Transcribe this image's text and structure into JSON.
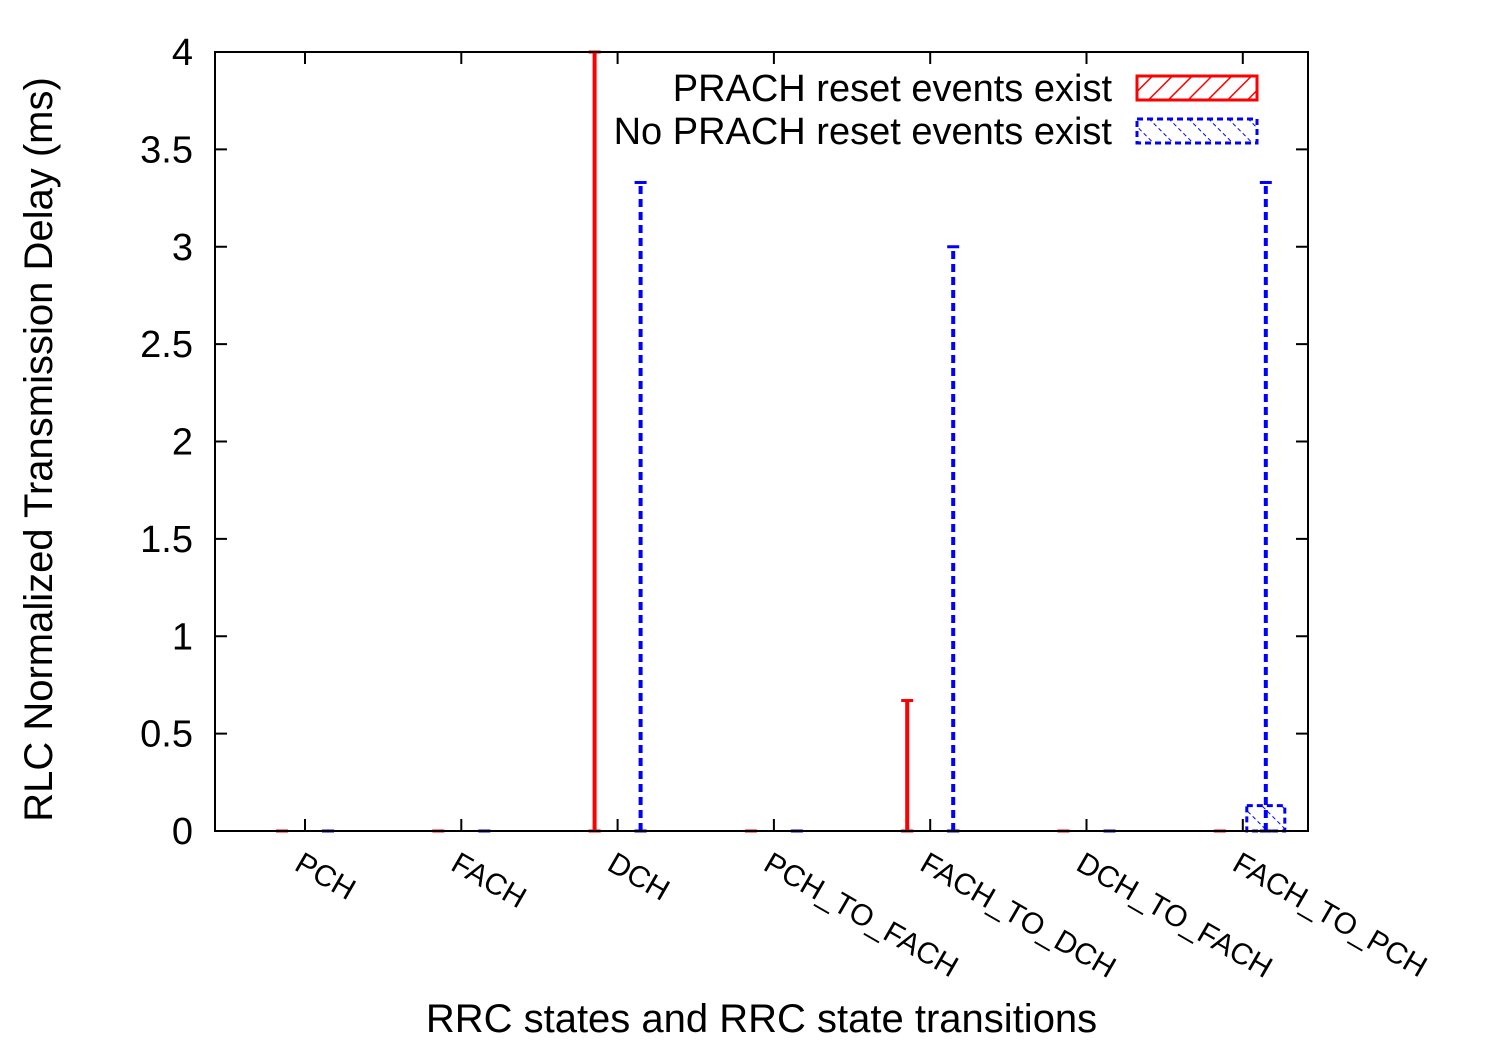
{
  "chart_data": {
    "type": "bar",
    "xlabel": "RRC states and RRC state transitions",
    "ylabel": "RLC Normalized Transmission Delay (ms)",
    "ylim": [
      0,
      4
    ],
    "yticks": [
      "0",
      "0.5",
      "1",
      "1.5",
      "2",
      "2.5",
      "3",
      "3.5",
      "4"
    ],
    "ytick_values": [
      0,
      0.5,
      1,
      1.5,
      2,
      2.5,
      3,
      3.5,
      4
    ],
    "categories": [
      "PCH",
      "FACH",
      "DCH",
      "PCH_TO_FACH",
      "FACH_TO_DCH",
      "DCH_TO_FACH",
      "FACH_TO_PCH"
    ],
    "legend_position": "top-right",
    "error_bars": true,
    "series": [
      {
        "name": "PRACH reset events exist",
        "color": "#ff0000",
        "pattern": "hatch-solid",
        "values": [
          0,
          0,
          0,
          0,
          0,
          0,
          0
        ],
        "error_low": [
          0,
          0,
          0,
          0,
          0,
          0,
          0
        ],
        "error_high": [
          0,
          0,
          4.0,
          0,
          0.67,
          0,
          0
        ]
      },
      {
        "name": "No PRACH reset events exist",
        "color": "#0000ff",
        "pattern": "hatch-dashed",
        "values": [
          0,
          0,
          0,
          0,
          0,
          0,
          0.13
        ],
        "error_low": [
          0,
          0,
          0,
          0,
          0,
          0,
          0
        ],
        "error_high": [
          0,
          0,
          3.33,
          0,
          3.0,
          0,
          3.33
        ]
      }
    ]
  }
}
